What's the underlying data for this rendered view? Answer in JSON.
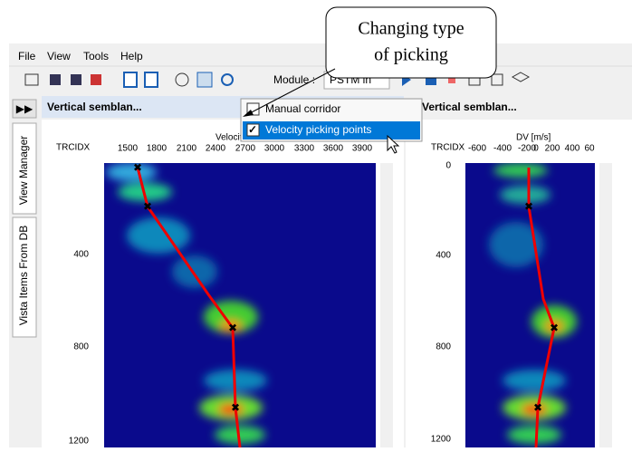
{
  "callout": {
    "lines": [
      "Changing type",
      "of picking"
    ]
  },
  "menu": [
    "File",
    "View",
    "Tools",
    "Help"
  ],
  "toolbar": {
    "module_label": "Module :",
    "module_value": "PSTM in"
  },
  "side_tabs": [
    "View Manager",
    "Vista Items From DB"
  ],
  "dropdown": {
    "items": [
      "Manual corridor",
      "Velocity picking points"
    ]
  },
  "panels": [
    {
      "title": "Vertical semblan...",
      "y_label": "TRCIDX",
      "x_label": "Velocity",
      "x_ticks": [
        "1500",
        "1800",
        "2100",
        "2400",
        "2700",
        "3000",
        "3300",
        "3600",
        "3900"
      ],
      "y_ticks": [
        "400",
        "800",
        "1200"
      ]
    },
    {
      "title": "Vertical semblan...",
      "y_label": "TRCIDX",
      "x_label": "DV [m/s]",
      "x_ticks": [
        "-600",
        "-400",
        "-200",
        "0",
        "200",
        "400",
        "60"
      ],
      "y_ticks": [
        "0",
        "400",
        "800",
        "1200"
      ]
    }
  ]
}
